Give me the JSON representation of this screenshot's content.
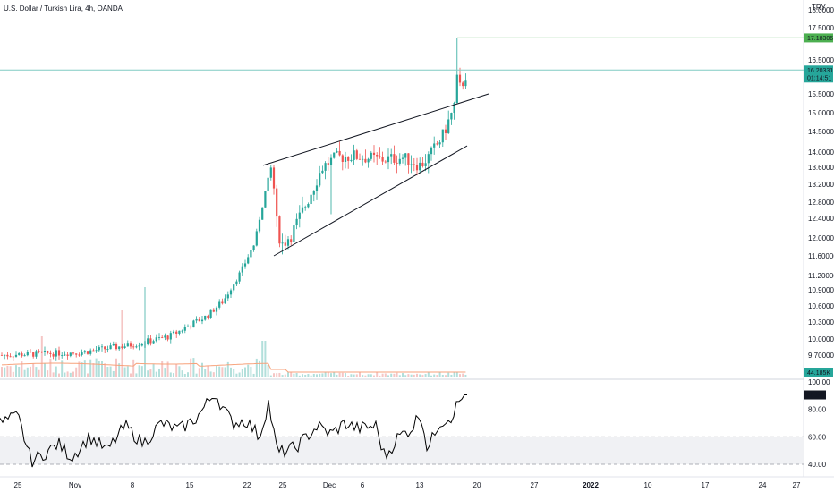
{
  "header": {
    "symbol_title": "U.S. Dollar / Turkish Lira, 4h, OANDA",
    "currency": "TRY"
  },
  "colors": {
    "up": "#26a69a",
    "down": "#ef5350",
    "volume_ma": "#f7a27b",
    "last_price_line": "#80cbc4",
    "high_line": "#4caf50",
    "rsi_line": "#000000"
  },
  "chart_data": {
    "type": "candlestick",
    "title": "U.S. Dollar / Turkish Lira, 4h, OANDA",
    "price_axis": {
      "ticks": [
        "18.00000",
        "17.50000",
        "16.50000",
        "15.50000",
        "15.00000",
        "14.50000",
        "14.00000",
        "13.60000",
        "13.20000",
        "12.80000",
        "12.40000",
        "12.00000",
        "11.60000",
        "11.20000",
        "10.90000",
        "10.60000",
        "10.30000",
        "10.00000",
        "9.70000"
      ],
      "ylim": [
        9.55,
        18.05
      ]
    },
    "time_axis": {
      "ticks": [
        "25",
        "Nov",
        "8",
        "15",
        "22",
        "25",
        "Dec",
        "6",
        "13",
        "20",
        "27",
        "2022",
        "10",
        "17",
        "24",
        "27"
      ]
    },
    "badges": {
      "high": "17.18306",
      "last_price": "16.20331",
      "countdown": "01:14:51",
      "volume": "44.185K",
      "rsi": "90.53"
    },
    "high_value": 17.18306,
    "last_value": 16.20331,
    "series": {
      "start": 9.7,
      "rise1": 10.6,
      "rise2": 11.3,
      "peak1": 13.65,
      "trough1": 11.85,
      "plateau": 13.9,
      "pullback": 13.65,
      "end_base": 15.3,
      "spike_high": 17.18,
      "last": 16.2
    },
    "trendlines": [
      {
        "name": "upper",
        "from": 13.65,
        "to": 15.5
      },
      {
        "name": "lower",
        "from": 11.6,
        "to": 14.15
      }
    ],
    "rsi": {
      "ticks": [
        "100.00",
        "80.00",
        "60.00",
        "40.00"
      ],
      "ylim": [
        35,
        103
      ],
      "band": [
        40,
        60
      ],
      "last": 90.53
    }
  }
}
